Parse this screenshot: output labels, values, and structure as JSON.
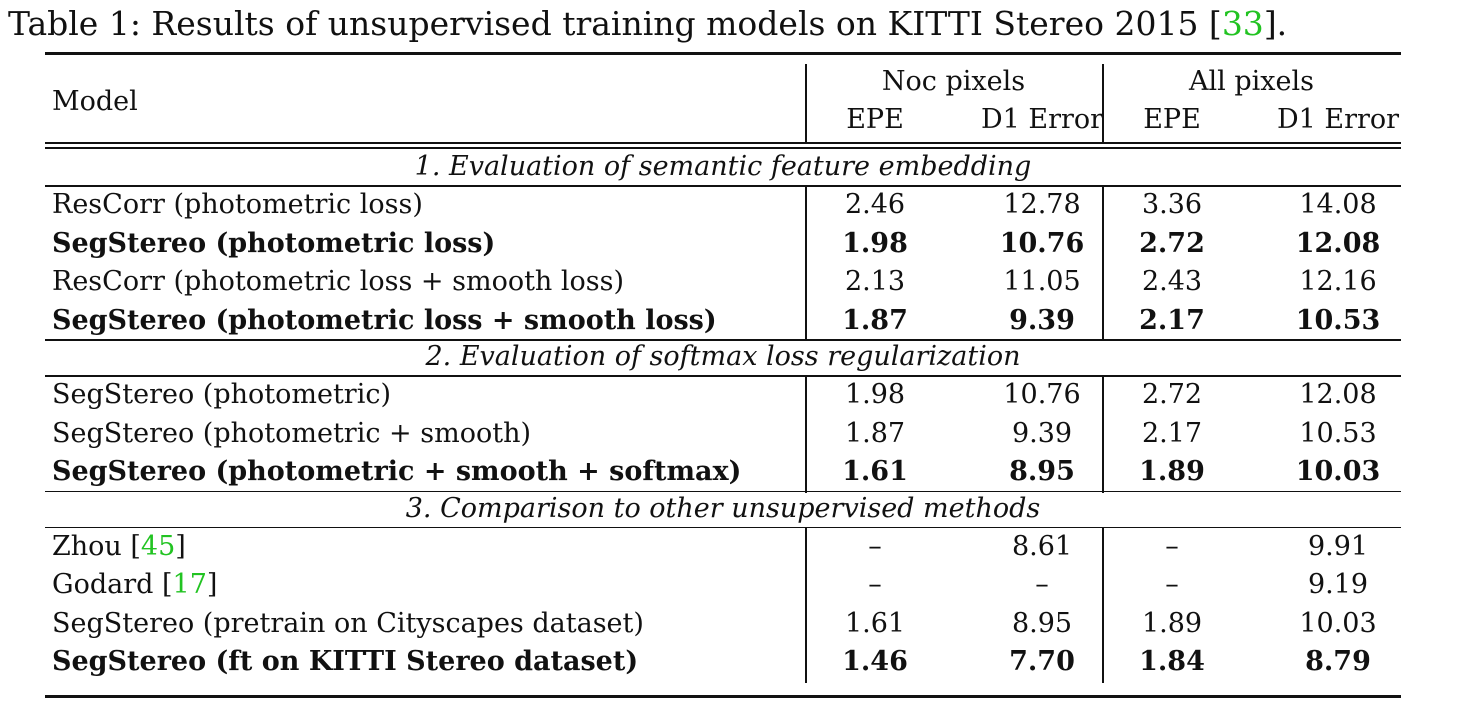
{
  "caption": {
    "prefix": "Table 1: Results of unsupervised training models on KITTI Stereo 2015 [",
    "cite": "33",
    "suffix": "]."
  },
  "header": {
    "model": "Model",
    "groups": [
      "Noc pixels",
      "All pixels"
    ],
    "columns": [
      "EPE",
      "D1 Error",
      "EPE",
      "D1 Error"
    ]
  },
  "sections": [
    {
      "title": "1. Evaluation of semantic feature embedding",
      "rows": [
        {
          "model": "ResCorr (photometric loss)",
          "values": [
            "2.46",
            "12.78",
            "3.36",
            "14.08"
          ],
          "bold": false
        },
        {
          "model": "SegStereo (photometric loss)",
          "values": [
            "1.98",
            "10.76",
            "2.72",
            "12.08"
          ],
          "bold": true
        },
        {
          "model": "ResCorr (photometric loss + smooth loss)",
          "values": [
            "2.13",
            "11.05",
            "2.43",
            "12.16"
          ],
          "bold": false
        },
        {
          "model": "SegStereo (photometric loss + smooth loss)",
          "values": [
            "1.87",
            "9.39",
            "2.17",
            "10.53"
          ],
          "bold": true
        }
      ]
    },
    {
      "title": "2. Evaluation of softmax loss regularization",
      "rows": [
        {
          "model": "SegStereo (photometric)",
          "values": [
            "1.98",
            "10.76",
            "2.72",
            "12.08"
          ],
          "bold": false
        },
        {
          "model": "SegStereo (photometric + smooth)",
          "values": [
            "1.87",
            "9.39",
            "2.17",
            "10.53"
          ],
          "bold": false
        },
        {
          "model": "SegStereo (photometric + smooth + softmax)",
          "values": [
            "1.61",
            "8.95",
            "1.89",
            "10.03"
          ],
          "bold": true
        }
      ]
    },
    {
      "title": "3. Comparison to other unsupervised methods",
      "rows": [
        {
          "model": "Zhou [",
          "cite": "45",
          "cite_close": "]",
          "values": [
            "–",
            "8.61",
            "–",
            "9.91"
          ],
          "bold": false
        },
        {
          "model": "Godard [",
          "cite": "17",
          "cite_close": "]",
          "values": [
            "–",
            "–",
            "–",
            "9.19"
          ],
          "bold": false
        },
        {
          "model": "SegStereo (pretrain on Cityscapes dataset)",
          "values": [
            "1.61",
            "8.95",
            "1.89",
            "10.03"
          ],
          "bold": false
        },
        {
          "model": "SegStereo (ft on KITTI Stereo dataset)",
          "values": [
            "1.46",
            "7.70",
            "1.84",
            "8.79"
          ],
          "bold": true
        }
      ]
    }
  ],
  "colors": {
    "citation": "#22c322",
    "text": "#111111"
  }
}
